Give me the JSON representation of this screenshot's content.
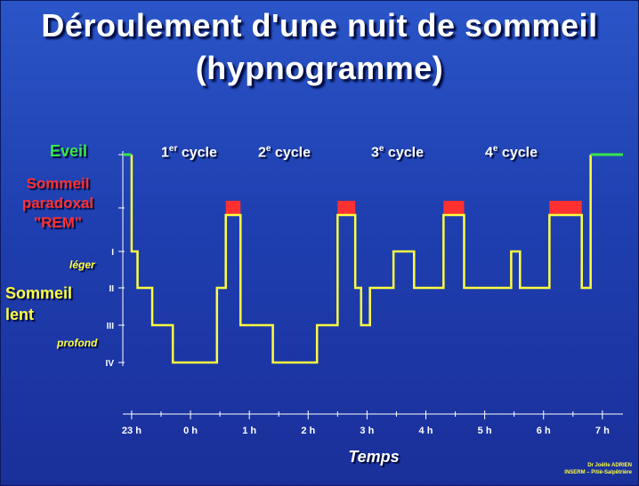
{
  "title_line1": "Déroulement d'une nuit de sommeil",
  "title_line2": "(hypnogramme)",
  "labels": {
    "eveil": "Eveil",
    "rem_line1": "Sommeil",
    "rem_line2": "paradoxal",
    "rem_line3": "\"REM\"",
    "lent_line1": "Sommeil",
    "lent_line2": "lent",
    "leger": "léger",
    "profond": "profond"
  },
  "cycles": [
    {
      "num": "1",
      "sup": "er",
      "word": "cycle"
    },
    {
      "num": "2",
      "sup": "e",
      "word": "cycle"
    },
    {
      "num": "3",
      "sup": "e",
      "word": "cycle"
    },
    {
      "num": "4",
      "sup": "e",
      "word": "cycle"
    }
  ],
  "credit_line1": "Dr Joëlle ADRIEN",
  "credit_line2": "INSERM – Pitié-Salpêtrière",
  "colors": {
    "eveil": "#38e64a",
    "rem": "#ff3030",
    "lent": "#ffff40",
    "axis": "#ffffff"
  },
  "chart_data": {
    "type": "line",
    "xlabel": "Temps",
    "x_ticks": [
      "23 h",
      "0 h",
      "1 h",
      "2 h",
      "3 h",
      "4 h",
      "5 h",
      "6 h",
      "7 h"
    ],
    "x_tick_values": [
      23,
      24,
      25,
      26,
      27,
      28,
      29,
      30,
      31
    ],
    "xlim": [
      22.85,
      31.35
    ],
    "y_levels": [
      "Eveil",
      "REM",
      "I",
      "II",
      "III",
      "IV"
    ],
    "y_tick_labels": [
      "",
      "",
      "I",
      "II",
      "III",
      "IV"
    ],
    "stages": [
      {
        "start": 22.85,
        "end": 23.0,
        "stage": "Eveil"
      },
      {
        "start": 23.0,
        "end": 23.1,
        "stage": "I"
      },
      {
        "start": 23.1,
        "end": 23.35,
        "stage": "II"
      },
      {
        "start": 23.35,
        "end": 23.7,
        "stage": "III"
      },
      {
        "start": 23.7,
        "end": 24.45,
        "stage": "IV"
      },
      {
        "start": 24.45,
        "end": 24.6,
        "stage": "II"
      },
      {
        "start": 24.6,
        "end": 24.85,
        "stage": "REM"
      },
      {
        "start": 24.85,
        "end": 25.4,
        "stage": "III"
      },
      {
        "start": 25.4,
        "end": 26.15,
        "stage": "IV"
      },
      {
        "start": 26.15,
        "end": 26.5,
        "stage": "III"
      },
      {
        "start": 26.5,
        "end": 26.8,
        "stage": "REM"
      },
      {
        "start": 26.8,
        "end": 26.9,
        "stage": "II"
      },
      {
        "start": 26.9,
        "end": 27.05,
        "stage": "III"
      },
      {
        "start": 27.05,
        "end": 27.45,
        "stage": "II"
      },
      {
        "start": 27.45,
        "end": 27.8,
        "stage": "I"
      },
      {
        "start": 27.8,
        "end": 28.3,
        "stage": "II"
      },
      {
        "start": 28.3,
        "end": 28.65,
        "stage": "REM"
      },
      {
        "start": 28.65,
        "end": 29.45,
        "stage": "II"
      },
      {
        "start": 29.45,
        "end": 29.6,
        "stage": "I"
      },
      {
        "start": 29.6,
        "end": 30.1,
        "stage": "II"
      },
      {
        "start": 30.1,
        "end": 30.65,
        "stage": "REM"
      },
      {
        "start": 30.65,
        "end": 30.8,
        "stage": "II"
      },
      {
        "start": 30.8,
        "end": 31.35,
        "stage": "Eveil"
      }
    ]
  }
}
